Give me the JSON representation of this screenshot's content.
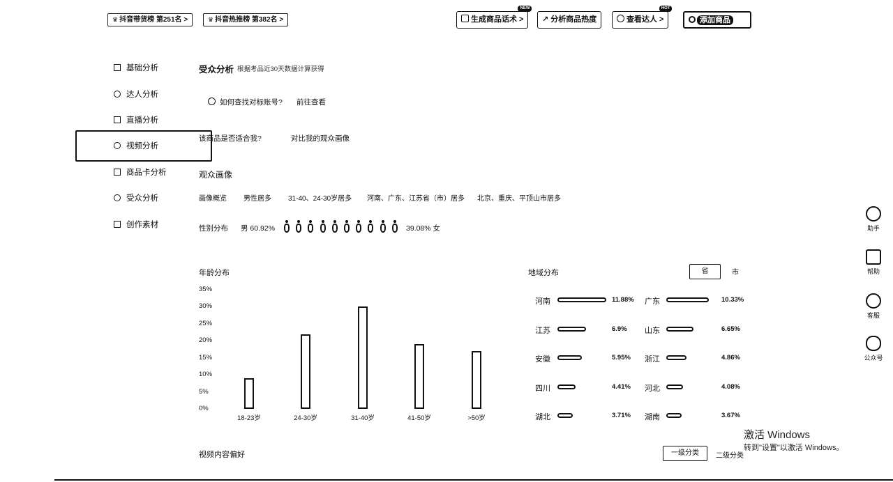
{
  "top": {
    "rank1": "抖音带货榜 第251名 >",
    "rank2": "抖音热推榜 第382名 >",
    "btn_generate": "生成商品话术 >",
    "btn_analyze": "分析商品热度",
    "btn_talent": "查看达人 >",
    "btn_primary": "添加商品",
    "badge_new": "NEW",
    "badge_hot": "HOT"
  },
  "sidebar": {
    "items": [
      {
        "label": "基础分析",
        "icon": "doc-icon"
      },
      {
        "label": "达人分析",
        "icon": "user-icon"
      },
      {
        "label": "直播分析",
        "icon": "live-icon"
      },
      {
        "label": "视频分析",
        "icon": "video-icon"
      },
      {
        "label": "商品卡分析",
        "icon": "bag-icon"
      },
      {
        "label": "受众分析",
        "icon": "audience-icon"
      },
      {
        "label": "创作素材",
        "icon": "folder-icon"
      }
    ],
    "active_index": 3
  },
  "audience": {
    "title": "受众分析",
    "subtitle": "根据考品近30天数据计算获得",
    "help_question": "如何查找对标账号?",
    "help_link": "前往查看",
    "fit_question": "该商品是否适合我?",
    "compare_link": "对比我的观众画像",
    "portrait_title": "观众画像",
    "overview_label": "画像概览",
    "overview_tags": [
      "男性居多",
      "31-40、24-30岁居多",
      "河南、广东、江苏省（市）居多",
      "北京、重庆、平顶山市居多"
    ],
    "gender_label": "性别分布",
    "male_pct": "男 60.92%",
    "female_pct": "39.08% 女",
    "male_share": 0.6092
  },
  "age_chart": {
    "title": "年龄分布",
    "chart_data": {
      "type": "bar",
      "categories": [
        "18-23岁",
        "24-30岁",
        "31-40岁",
        "41-50岁",
        ">50岁"
      ],
      "values": [
        9,
        22,
        30,
        19,
        17
      ],
      "yticks": [
        "35%",
        "30%",
        "25%",
        "20%",
        "15%",
        "10%",
        "5%",
        "0%"
      ],
      "ylim": [
        0,
        35
      ]
    }
  },
  "region": {
    "title": "地域分布",
    "toggle_province": "省",
    "toggle_city": "市",
    "items": [
      {
        "name": "河南",
        "pct": "11.88%",
        "value": 11.88
      },
      {
        "name": "广东",
        "pct": "10.33%",
        "value": 10.33
      },
      {
        "name": "江苏",
        "pct": "6.9%",
        "value": 6.9
      },
      {
        "name": "山东",
        "pct": "6.65%",
        "value": 6.65
      },
      {
        "name": "安徽",
        "pct": "5.95%",
        "value": 5.95
      },
      {
        "name": "浙江",
        "pct": "4.86%",
        "value": 4.86
      },
      {
        "name": "四川",
        "pct": "4.41%",
        "value": 4.41
      },
      {
        "name": "河北",
        "pct": "4.08%",
        "value": 4.08
      },
      {
        "name": "湖北",
        "pct": "3.71%",
        "value": 3.71
      },
      {
        "name": "湖南",
        "pct": "3.67%",
        "value": 3.67
      }
    ]
  },
  "preference": {
    "title": "视频内容偏好",
    "tab1": "一级分类",
    "tab2": "二级分类"
  },
  "rail": {
    "items": [
      {
        "label": "助手"
      },
      {
        "label": "帮助"
      },
      {
        "label": "客服"
      },
      {
        "label": "公众号"
      }
    ]
  },
  "watermark": {
    "line1": "激活 Windows",
    "line2": "转到\"设置\"以激活 Windows。"
  }
}
